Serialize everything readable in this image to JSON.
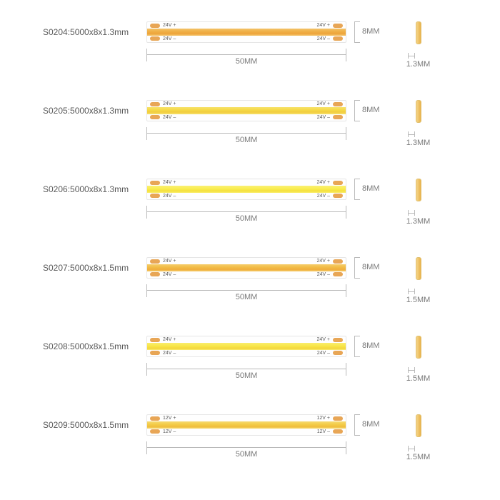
{
  "colors": {
    "text": "#5a5a5a",
    "dim": "#b9b9b9",
    "pad": "#e8a656",
    "strip_border": "#e6e6e6"
  },
  "band_gradients": {
    "orange": "linear-gradient(180deg, #f3c36a 0%, #f0b24a 35%, #eea43a 70%, #f3c36a 100%)",
    "yellow_warm": "linear-gradient(180deg, #f6e26c 0%, #f5d946 40%, #f2cc3e 70%, #f6e26c 100%)",
    "yellow_cool": "linear-gradient(180deg, #faf073 0%, #f9ec4e 45%, #f4df3c 75%, #faf073 100%)",
    "amber": "linear-gradient(180deg, #f5cd6c 0%, #f2bd47 40%, #efad3c 75%, #f5cd6c 100%)",
    "yellow": "linear-gradient(180deg, #f9ed6e 0%, #f8e648 45%, #f3d63c 78%, #f9ed6e 100%)",
    "gold": "linear-gradient(180deg, #f6da70 0%, #f3cc48 42%, #f0bd3d 76%, #f6da70 100%)"
  },
  "length_label": "50MM",
  "height_label": "8MM",
  "rows": [
    {
      "label": "S0204:5000x8x1.3mm",
      "voltage": "24V",
      "band": "orange",
      "thickness": "1.3MM"
    },
    {
      "label": "S0205:5000x8x1.3mm",
      "voltage": "24V",
      "band": "yellow_warm",
      "thickness": "1.3MM"
    },
    {
      "label": "S0206:5000x8x1.3mm",
      "voltage": "24V",
      "band": "yellow_cool",
      "thickness": "1.3MM"
    },
    {
      "label": "S0207:5000x8x1.5mm",
      "voltage": "24V",
      "band": "amber",
      "thickness": "1.5MM"
    },
    {
      "label": "S0208:5000x8x1.5mm",
      "voltage": "24V",
      "band": "yellow",
      "thickness": "1.5MM"
    },
    {
      "label": "S0209:5000x8x1.5mm",
      "voltage": "12V",
      "band": "gold",
      "thickness": "1.5MM"
    }
  ]
}
